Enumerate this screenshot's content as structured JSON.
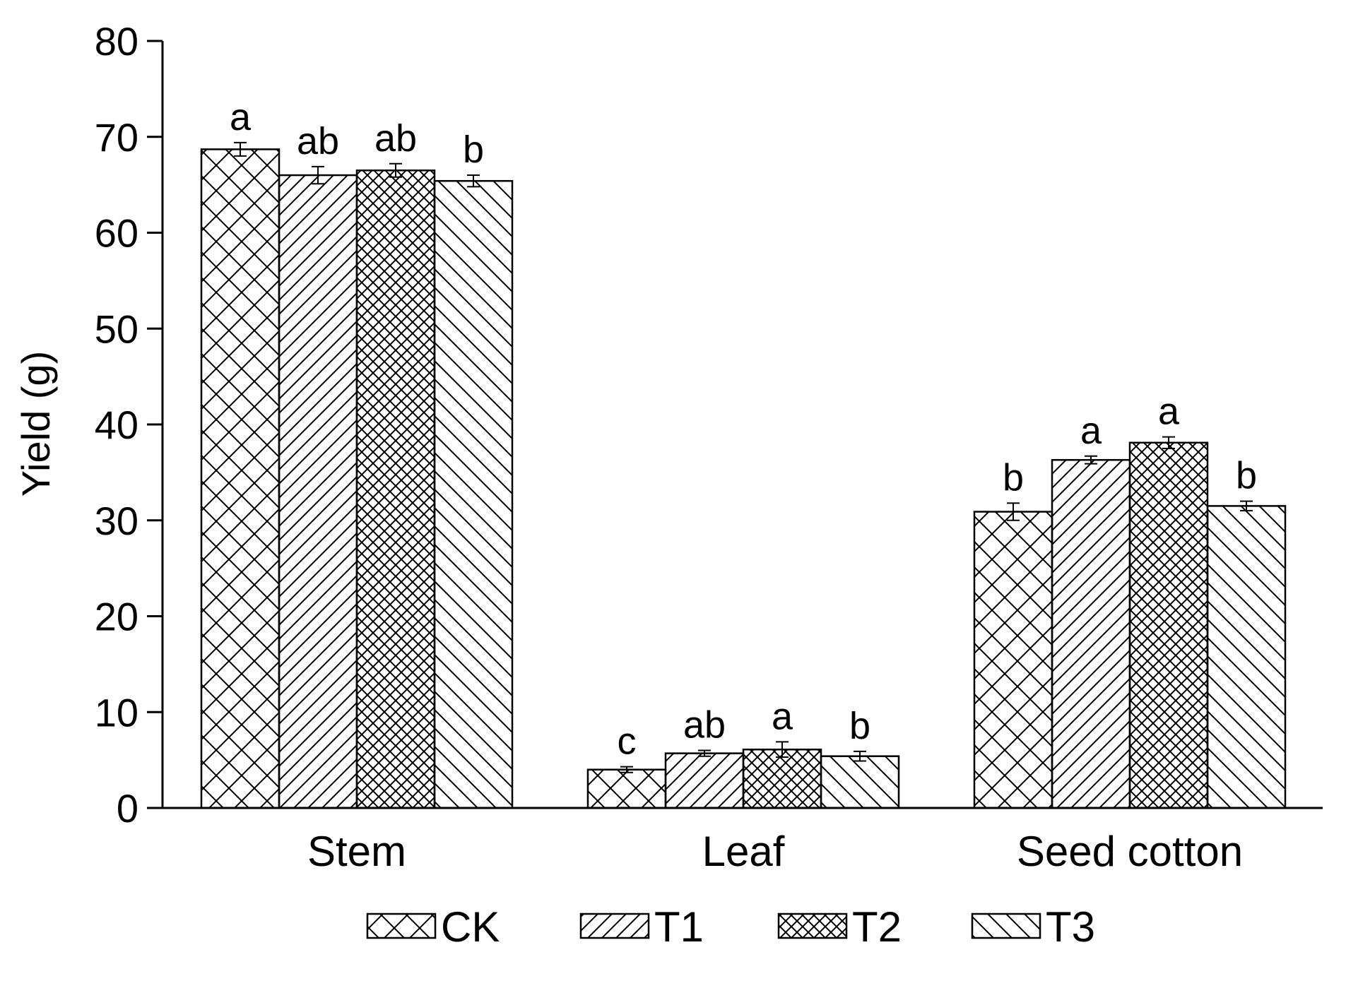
{
  "chart_data": {
    "type": "bar",
    "title": "",
    "xlabel": "",
    "ylabel": "Yield (g)",
    "ylim": [
      0,
      80
    ],
    "yticks": [
      0,
      10,
      20,
      30,
      40,
      50,
      60,
      70,
      80
    ],
    "grid": false,
    "legend_position": "bottom",
    "categories": [
      "Stem",
      "Leaf",
      "Seed cotton"
    ],
    "series": [
      {
        "name": "CK",
        "pattern": "crosshatch",
        "values": [
          68.7,
          4.0,
          30.9
        ],
        "errors": [
          0.7,
          0.3,
          0.9
        ],
        "letters": [
          "a",
          "c",
          "b"
        ]
      },
      {
        "name": "T1",
        "pattern": "diagonal-right",
        "values": [
          66.0,
          5.7,
          36.3
        ],
        "errors": [
          0.9,
          0.3,
          0.4
        ],
        "letters": [
          "ab",
          "ab",
          "a"
        ]
      },
      {
        "name": "T2",
        "pattern": "dense-crosshatch",
        "values": [
          66.5,
          6.1,
          38.1
        ],
        "errors": [
          0.7,
          0.8,
          0.6
        ],
        "letters": [
          "ab",
          "a",
          "a"
        ]
      },
      {
        "name": "T3",
        "pattern": "diagonal-left",
        "values": [
          65.4,
          5.4,
          31.5
        ],
        "errors": [
          0.6,
          0.5,
          0.5
        ],
        "letters": [
          "b",
          "b",
          "b"
        ]
      }
    ]
  }
}
